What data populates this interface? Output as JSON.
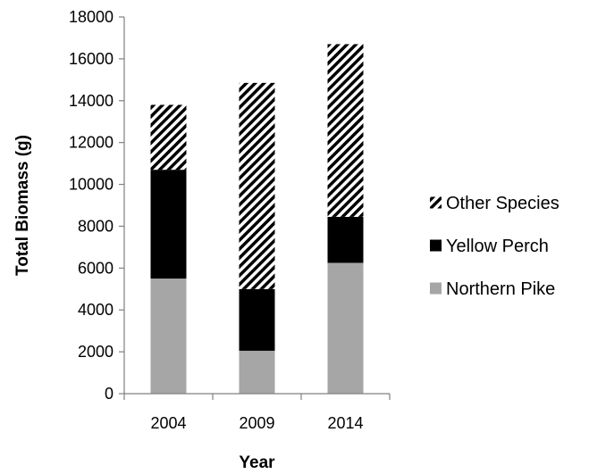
{
  "chart_data": {
    "type": "bar",
    "stacked": true,
    "categories": [
      "2004",
      "2009",
      "2014"
    ],
    "series": [
      {
        "name": "Northern Pike",
        "values": [
          5500,
          2050,
          6250
        ],
        "color": "#a6a6a6",
        "pattern": "solid"
      },
      {
        "name": "Yellow Perch",
        "values": [
          5200,
          2950,
          2200
        ],
        "color": "#000000",
        "pattern": "solid"
      },
      {
        "name": "Other Species",
        "values": [
          3100,
          9850,
          8250
        ],
        "color": "#000000",
        "pattern": "diagonal-hatch"
      }
    ],
    "xlabel": "Year",
    "ylabel": "Total Biomass (g)",
    "ylim": [
      0,
      18000
    ],
    "yticks": [
      0,
      2000,
      4000,
      6000,
      8000,
      10000,
      12000,
      14000,
      16000,
      18000
    ],
    "grid": false,
    "legend": {
      "position": "right",
      "order": [
        "Other Species",
        "Yellow Perch",
        "Northern Pike"
      ]
    }
  }
}
